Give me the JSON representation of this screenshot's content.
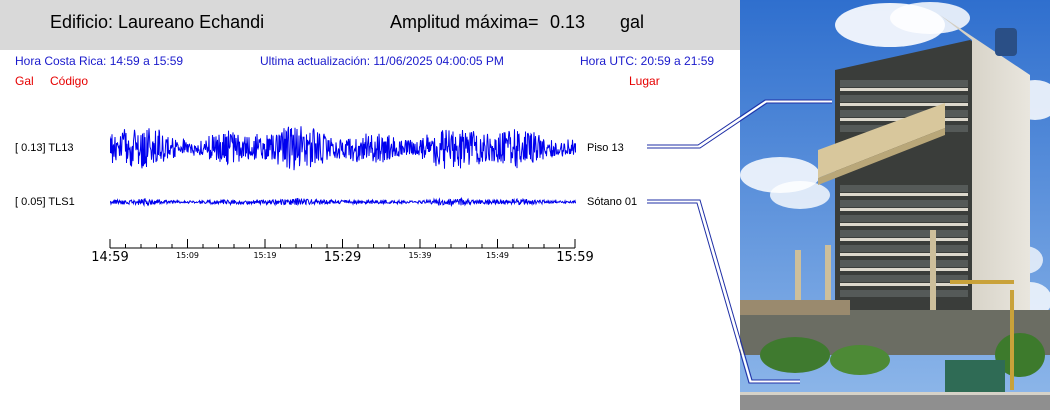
{
  "header": {
    "title": "Edificio: Laureano Echandi",
    "amp_label": "Amplitud máxima=",
    "amp_value": "0.13",
    "amp_unit": "gal"
  },
  "info": {
    "hora_cr": "Hora Costa Rica:    14:59 a 15:59",
    "update": "Ultima actualización:  11/06/2025 04:00:05 PM",
    "hora_utc": "Hora UTC:    20:59 a 21:59"
  },
  "legend": {
    "gal": "Gal",
    "codigo": "Código",
    "lugar": "Lugar"
  },
  "channels": [
    {
      "label": "[   0.13] TL13",
      "place": "Piso 13"
    },
    {
      "label": "[   0.05] TLS1",
      "place": "Sótano 01"
    }
  ],
  "chart_data": {
    "type": "line",
    "x_ticks_major": [
      "14:59",
      "15:29",
      "15:59"
    ],
    "x_ticks_minor": [
      "15:09",
      "15:19",
      "15:39",
      "15:49"
    ],
    "series": [
      {
        "name": "TL13",
        "peak": 0.13
      },
      {
        "name": "TLS1",
        "peak": 0.05
      }
    ],
    "trace_color": "#0000ee"
  },
  "colors": {
    "header_bg": "#d9d9d9",
    "info_blue": "#1a1acc",
    "legend_red": "#e60000",
    "sky": "#3a7bd5"
  }
}
